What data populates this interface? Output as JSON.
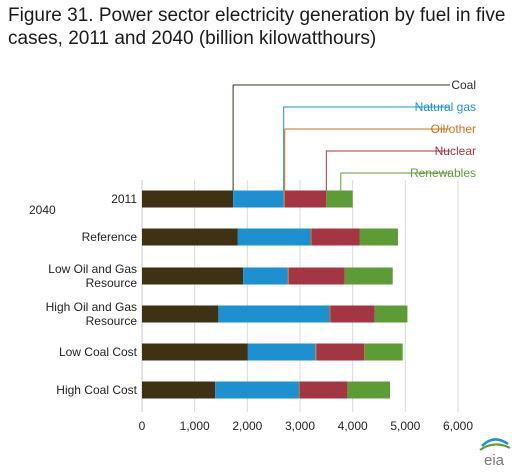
{
  "title": "Figure 31. Power sector electricity generation by fuel in five cases, 2011 and 2040 (billion kilowatthours)",
  "section_label": "2040",
  "logo_text": "eia",
  "chart_data": {
    "type": "bar",
    "orientation": "horizontal",
    "stacked": true,
    "categories": [
      "2011",
      "Reference",
      "Low Oil and Gas\nResource",
      "High Oil and  Gas\nResource",
      "Low Coal Cost",
      "High Coal Cost"
    ],
    "series": [
      {
        "name": "Coal",
        "color": "#3f3114",
        "values": [
          1730,
          1820,
          1920,
          1450,
          2010,
          1390
        ]
      },
      {
        "name": "Natural gas",
        "color": "#1e90cf",
        "values": [
          960,
          1380,
          850,
          2110,
          1280,
          1590
        ]
      },
      {
        "name": "Oil/other",
        "color": "#c8721e",
        "values": [
          20,
          20,
          20,
          20,
          20,
          20
        ]
      },
      {
        "name": "Nuclear",
        "color": "#a33643",
        "values": [
          790,
          910,
          1060,
          840,
          910,
          900
        ]
      },
      {
        "name": "Renewables",
        "color": "#5c9b35",
        "values": [
          500,
          730,
          910,
          620,
          730,
          810
        ]
      }
    ],
    "xlim": [
      0,
      6000
    ],
    "xticks": [
      "0",
      "1,000",
      "2,000",
      "3,000",
      "4,000",
      "5,000",
      "6,000"
    ],
    "xtick_values": [
      0,
      1000,
      2000,
      3000,
      4000,
      5000,
      6000
    ],
    "grid": "vertical",
    "legend_placement": "top-right, callout lines to 2011 bar"
  }
}
